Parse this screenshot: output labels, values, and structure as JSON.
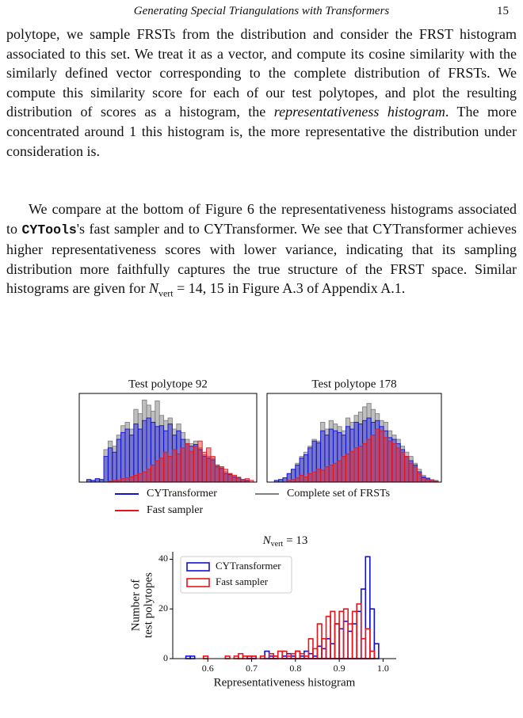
{
  "header": {
    "title": "Generating Special Triangulations with Transformers",
    "page": "15"
  },
  "body": {
    "paragraphs": [
      [
        "polytope, we sample FRSTs from the distribution and consider the FRST histogram associated to this set. We treat it as a vector, and compute its cosine similarity with the similarly defined vector corresponding to the complete distribution of FRSTs. We compute this similarity score for each of our test polytopes, and plot the resulting distribution of scores as a histogram, the ",
        "representativeness histogram",
        ". The more concentrated around 1 this histogram is, the more representative the distribution under consideration is."
      ],
      [
        "We compare at the bottom of Figure 6 the representativeness histograms associated to ",
        "CYTools",
        "'s fast sampler and to CYTransformer. We see that CYTransformer achieves higher representativeness scores with lower variance, indicating that its sampling distribution more faithfully captures the true structure of the FRST space. Similar histograms are given for ",
        "N",
        "vert",
        " = 14, 15 in Figure A.3 of Appendix A.1."
      ]
    ]
  },
  "chart_data": [
    {
      "type": "histogram",
      "title": "Test polytope 92",
      "ylim": [
        0,
        100
      ],
      "series": [
        {
          "name": "Complete set of FRSTs",
          "color": "#808080",
          "values": [
            0,
            3,
            2,
            4,
            3,
            38,
            48,
            42,
            55,
            66,
            70,
            62,
            85,
            80,
            96,
            90,
            83,
            95,
            78,
            72,
            75,
            62,
            68,
            58,
            50,
            45,
            48,
            40,
            32,
            30,
            28,
            20,
            18,
            12,
            10,
            8,
            6,
            3,
            2,
            0
          ]
        },
        {
          "name": "CYTransformer",
          "color": "#1010d8",
          "values": [
            0,
            3,
            2,
            4,
            3,
            30,
            40,
            35,
            50,
            58,
            62,
            55,
            68,
            62,
            72,
            75,
            70,
            65,
            66,
            60,
            68,
            55,
            60,
            50,
            45,
            42,
            44,
            38,
            30,
            28,
            26,
            18,
            16,
            10,
            9,
            6,
            5,
            3,
            2,
            0
          ]
        },
        {
          "name": "Fast sampler",
          "color": "#e8141a",
          "values": [
            0,
            0,
            0,
            0,
            0,
            0,
            1,
            2,
            2,
            4,
            5,
            6,
            8,
            10,
            12,
            15,
            20,
            25,
            28,
            35,
            30,
            38,
            33,
            40,
            45,
            36,
            42,
            48,
            35,
            40,
            30,
            20,
            18,
            15,
            10,
            8,
            5,
            3,
            4,
            2
          ]
        }
      ]
    },
    {
      "type": "histogram",
      "title": "Test polytope 178",
      "ylim": [
        0,
        100
      ],
      "series": [
        {
          "color": "#808080",
          "values": [
            0,
            2,
            3,
            5,
            10,
            15,
            22,
            30,
            35,
            42,
            50,
            48,
            70,
            62,
            72,
            68,
            65,
            60,
            75,
            70,
            78,
            82,
            88,
            92,
            85,
            80,
            72,
            70,
            60,
            55,
            50,
            42,
            35,
            30,
            22,
            15,
            8,
            5,
            3,
            2
          ]
        },
        {
          "color": "#1010d8",
          "values": [
            0,
            2,
            3,
            5,
            10,
            15,
            20,
            28,
            32,
            40,
            48,
            46,
            60,
            55,
            62,
            60,
            58,
            55,
            65,
            62,
            70,
            68,
            72,
            75,
            70,
            72,
            65,
            60,
            52,
            50,
            45,
            38,
            30,
            25,
            20,
            12,
            6,
            4,
            2,
            1
          ]
        },
        {
          "color": "#e8141a",
          "values": [
            0,
            0,
            0,
            0,
            2,
            3,
            5,
            8,
            6,
            10,
            12,
            15,
            14,
            18,
            20,
            22,
            25,
            30,
            33,
            36,
            40,
            42,
            45,
            50,
            55,
            62,
            60,
            52,
            48,
            45,
            40,
            35,
            30,
            22,
            18,
            10,
            5,
            3,
            2,
            1
          ]
        }
      ]
    },
    {
      "type": "step-histogram",
      "title": {
        "symbol": "N",
        "subscript": "vert",
        "rest": "= 13"
      },
      "xlabel": "Representativeness histogram",
      "ylabel": [
        "Number of",
        "test polytopes"
      ],
      "xlim": [
        0.52,
        1.03
      ],
      "ylim": [
        0,
        43
      ],
      "xticks": [
        0.6,
        0.7,
        0.8,
        0.9,
        {
          "value": 1.0,
          "label": "1.0"
        }
      ],
      "yticks": [
        0,
        20,
        40
      ],
      "legend": "upper left",
      "bins": [
        0.55,
        0.56,
        0.57,
        0.58,
        0.59,
        0.6,
        0.61,
        0.62,
        0.63,
        0.64,
        0.65,
        0.66,
        0.67,
        0.68,
        0.69,
        0.7,
        0.71,
        0.72,
        0.73,
        0.74,
        0.75,
        0.76,
        0.77,
        0.78,
        0.79,
        0.8,
        0.81,
        0.82,
        0.83,
        0.84,
        0.85,
        0.86,
        0.87,
        0.88,
        0.89,
        0.9,
        0.91,
        0.92,
        0.93,
        0.94,
        0.95,
        0.96,
        0.97,
        0.98,
        0.99,
        1.0
      ],
      "series": [
        {
          "name": "CYTransformer",
          "color": "#1010d8",
          "values": [
            1,
            1,
            0,
            0,
            0,
            0,
            0,
            0,
            0,
            0,
            0,
            0,
            0,
            0,
            1,
            1,
            0,
            0,
            3,
            1,
            1,
            0,
            1,
            2,
            1,
            3,
            1,
            3,
            2,
            1,
            5,
            4,
            8,
            6,
            14,
            12,
            15,
            11,
            14,
            19,
            28,
            41,
            20,
            6,
            0
          ]
        },
        {
          "name": "Fast sampler",
          "color": "#e8141a",
          "values": [
            0,
            0,
            0,
            0,
            1,
            0,
            0,
            0,
            0,
            1,
            0,
            1,
            2,
            1,
            1,
            1,
            0,
            1,
            0,
            2,
            1,
            3,
            3,
            1,
            2,
            3,
            2,
            1,
            8,
            4,
            14,
            8,
            17,
            19,
            14,
            19,
            20,
            14,
            19,
            22,
            8,
            12,
            3,
            0,
            0
          ]
        }
      ]
    }
  ]
}
